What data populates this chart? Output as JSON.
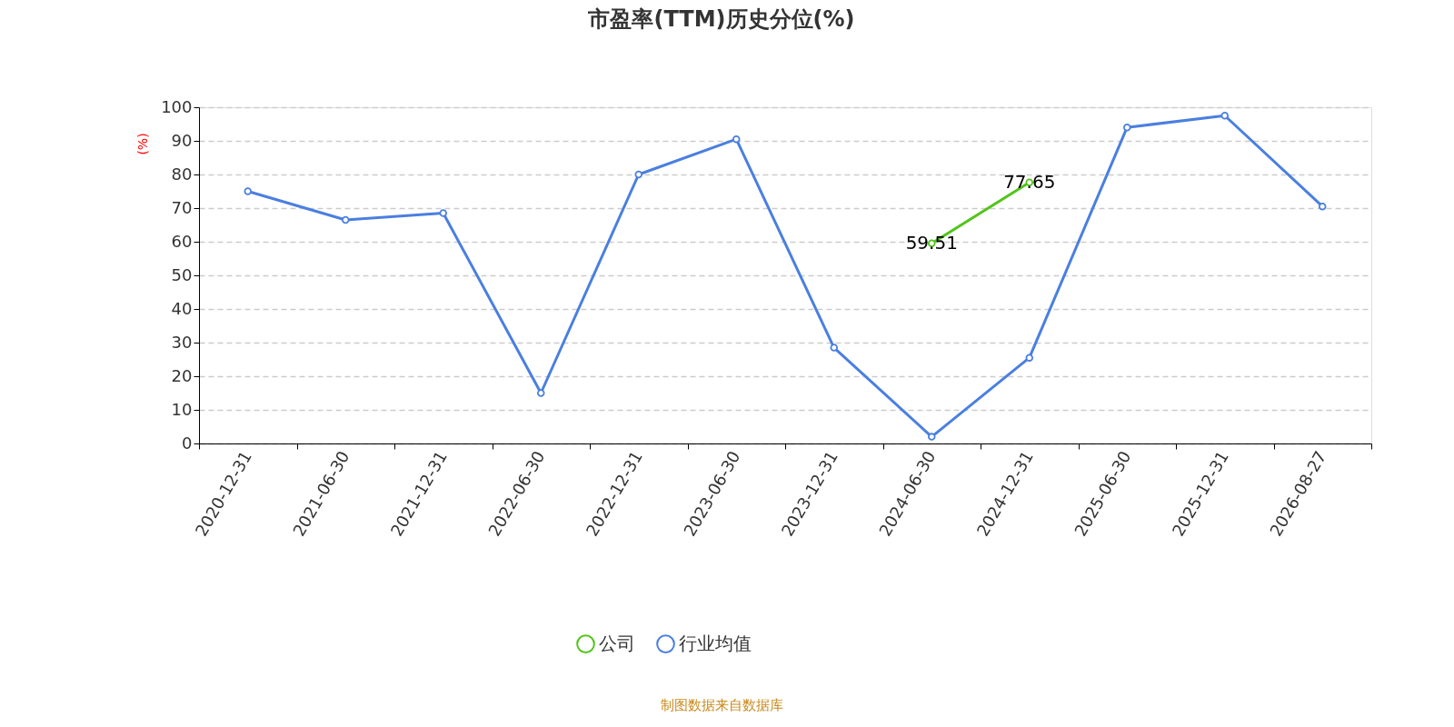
{
  "chart_data": {
    "type": "line",
    "title": "市盈率(TTM)历史分位(%)",
    "ylabel": "(%)",
    "categories": [
      "2020-12-31",
      "2021-06-30",
      "2021-12-31",
      "2022-06-30",
      "2022-12-31",
      "2023-06-30",
      "2023-12-31",
      "2024-06-30",
      "2024-12-31",
      "2025-06-30",
      "2025-12-31",
      "2026-08-27"
    ],
    "series": [
      {
        "name": "公司",
        "color": "#52c41a",
        "values": [
          null,
          null,
          null,
          null,
          null,
          null,
          null,
          59.51,
          77.65,
          null,
          null,
          null
        ],
        "value_labels": [
          null,
          null,
          null,
          null,
          null,
          null,
          null,
          "59.51",
          "77.65",
          null,
          null,
          null
        ]
      },
      {
        "name": "行业均值",
        "color": "#4a7fe0",
        "values": [
          75,
          66.5,
          68.5,
          15,
          80,
          90.5,
          28.5,
          2,
          25.5,
          94,
          97.5,
          70.5
        ]
      }
    ],
    "ylim": [
      0,
      100
    ],
    "yticks": [
      0,
      10,
      20,
      30,
      40,
      50,
      60,
      70,
      80,
      90,
      100
    ],
    "grid": "y",
    "legend": "bottom",
    "marker": "circle",
    "line_style": "solid",
    "annotations": [
      "制图数据来自数据库"
    ]
  }
}
